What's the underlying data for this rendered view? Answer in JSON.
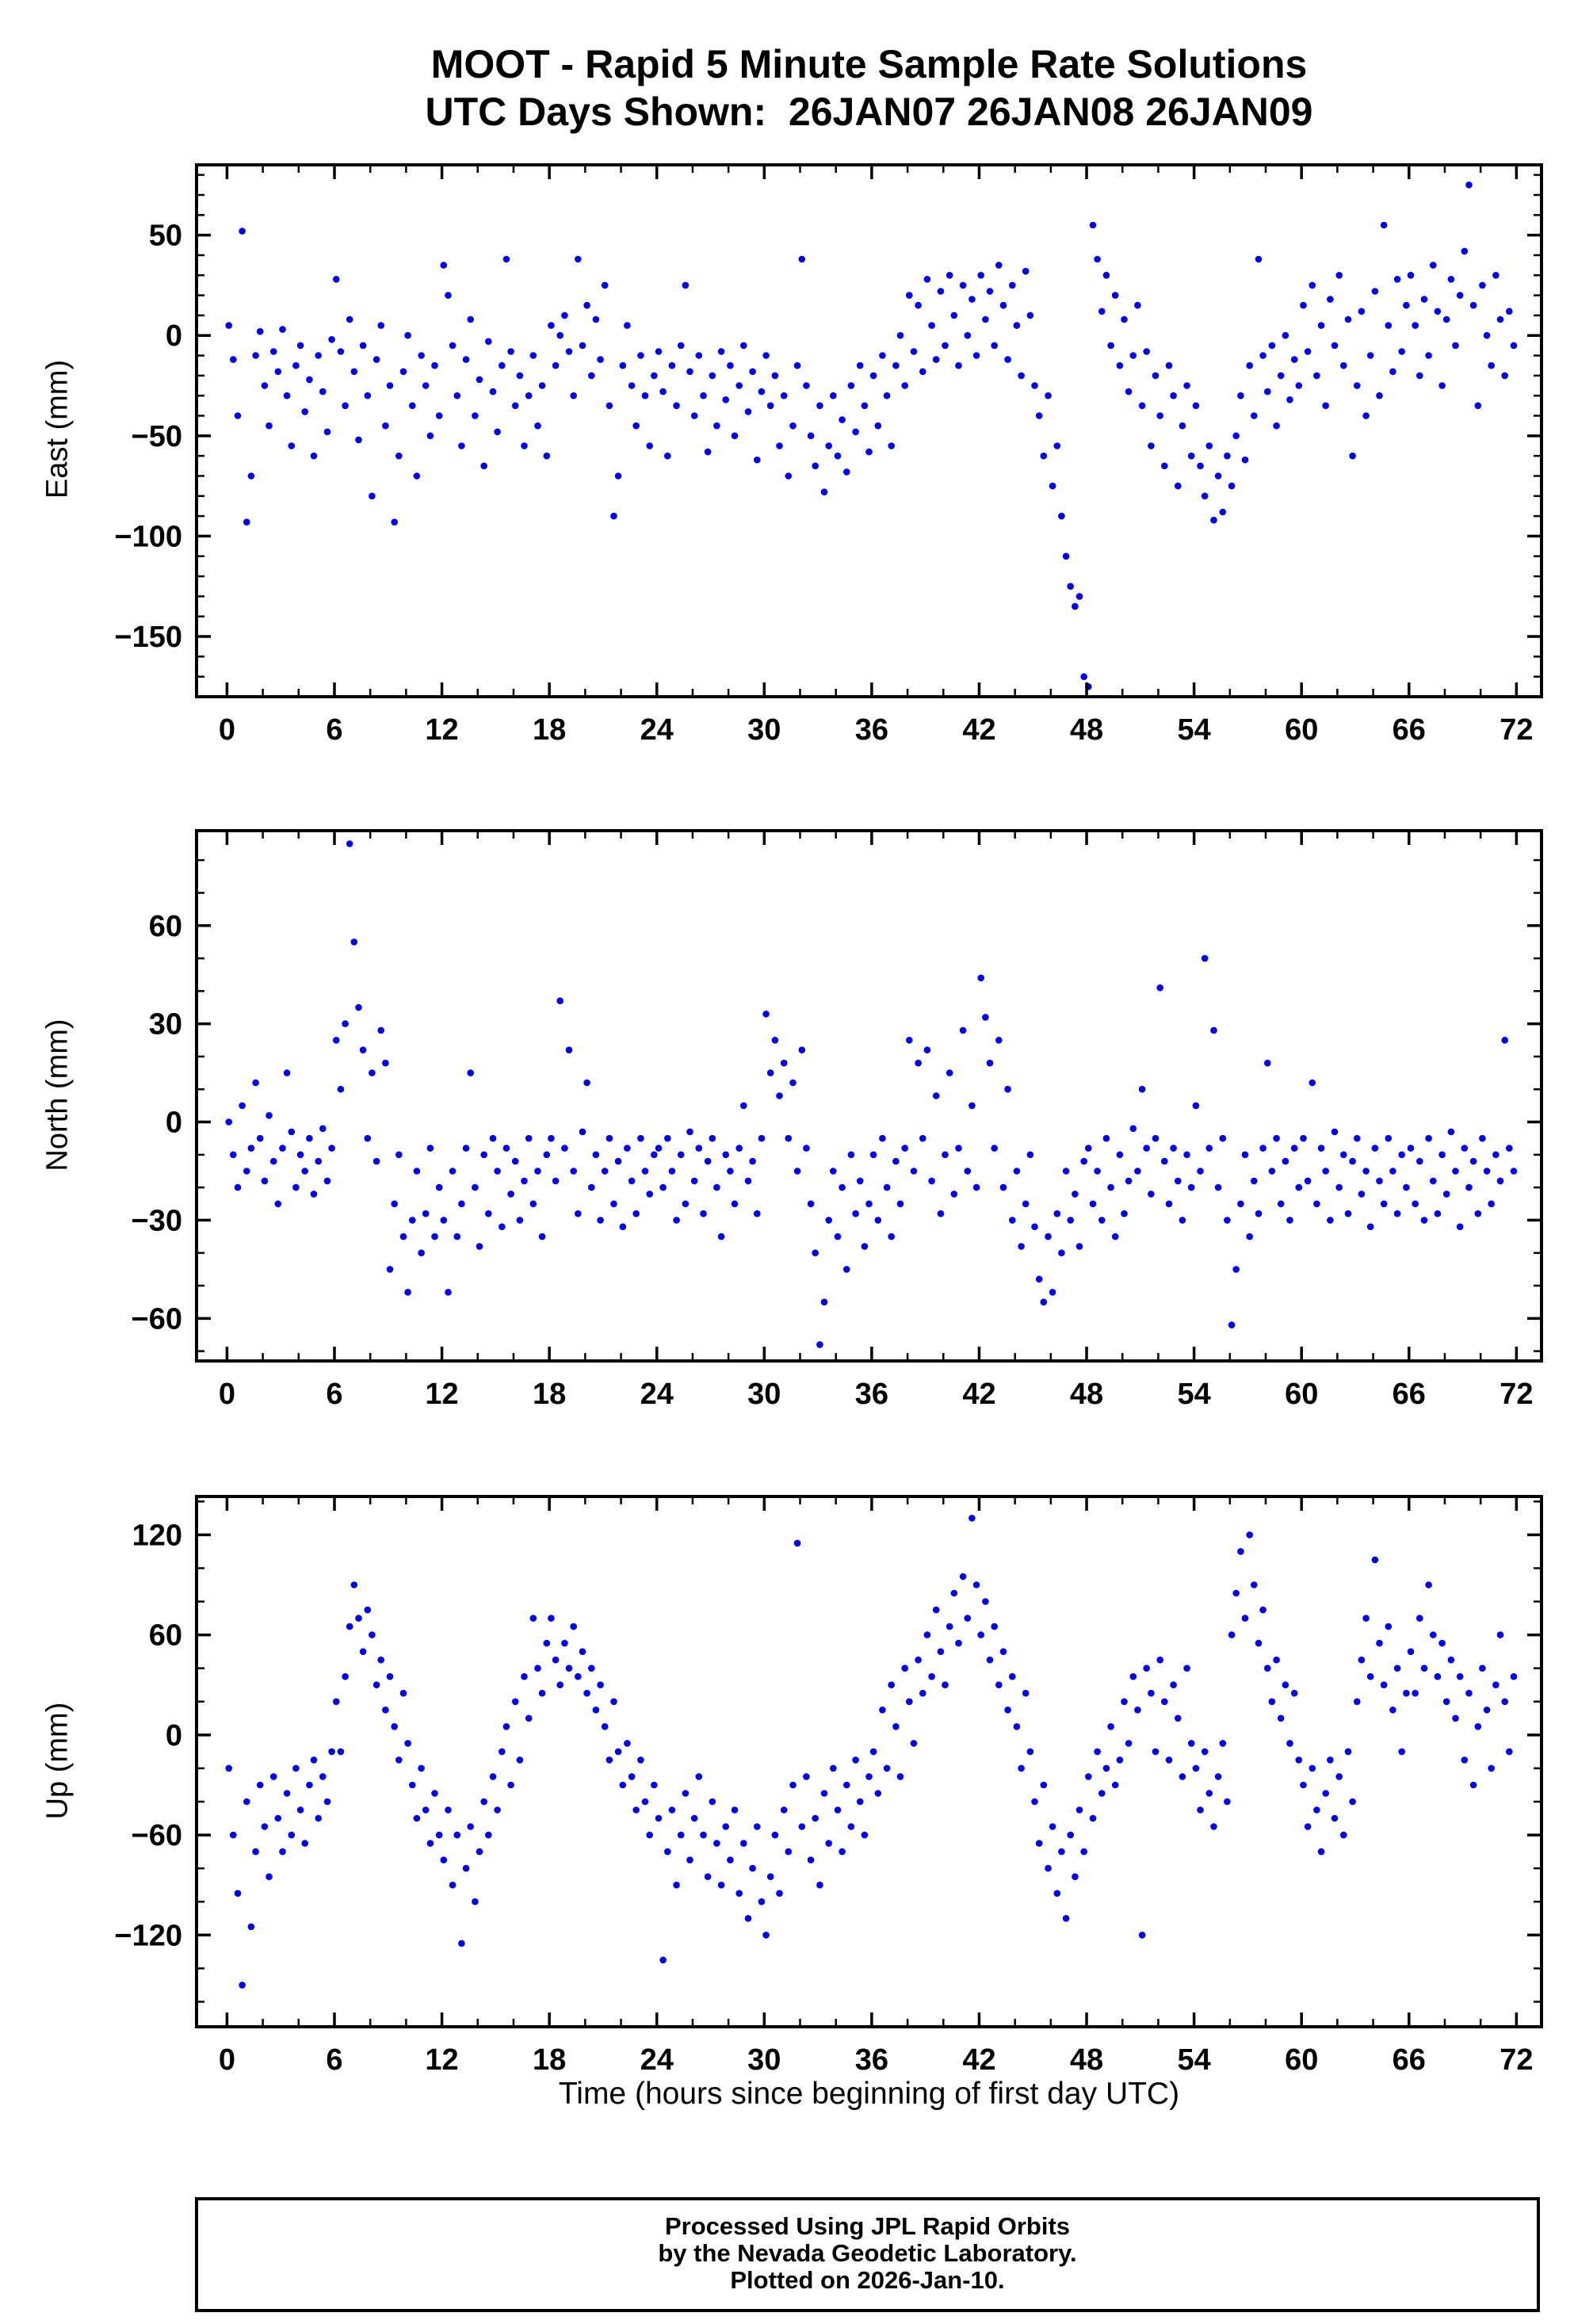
{
  "title": {
    "line1": "MOOT - Rapid 5 Minute Sample Rate Solutions",
    "line2": "UTC Days Shown:  26JAN07 26JAN08 26JAN09"
  },
  "xlabel": "Time (hours since beginning of first day UTC)",
  "footer": {
    "line1": "Processed Using JPL Rapid Orbits",
    "line2": "by the Nevada Geodetic Laboratory.",
    "line3": "Plotted on 2026-Jan-10."
  },
  "colors": {
    "point": "#0000e0",
    "frame": "#000000",
    "background": "#ffffff"
  },
  "chart_data": [
    {
      "type": "scatter",
      "name": "east",
      "ylabel": "East (mm)",
      "ylim": [
        -180,
        85
      ],
      "yticks": [
        50,
        0,
        -50,
        -100,
        -150
      ],
      "yminor": 10,
      "xlim": [
        -1.7,
        73.4
      ],
      "xticks": [
        0,
        6,
        12,
        18,
        24,
        30,
        36,
        42,
        48,
        54,
        60,
        66,
        72
      ],
      "xminor": 2,
      "x_start": 0.1,
      "dt_hours": 0.25,
      "values": [
        5,
        -12,
        -40,
        52,
        -93,
        -70,
        -10,
        2,
        -25,
        -45,
        -8,
        -18,
        3,
        -30,
        -55,
        -15,
        -5,
        -38,
        -22,
        -60,
        -10,
        -28,
        -48,
        -2,
        28,
        -8,
        -35,
        8,
        -18,
        -52,
        -5,
        -30,
        -80,
        -12,
        5,
        -45,
        -25,
        -93,
        -60,
        -18,
        0,
        -35,
        -70,
        -10,
        -25,
        -50,
        -15,
        -40,
        35,
        20,
        -5,
        -30,
        -55,
        -12,
        8,
        -40,
        -22,
        -65,
        -3,
        -28,
        -48,
        -15,
        38,
        -8,
        -35,
        -20,
        -55,
        -30,
        -10,
        -45,
        -25,
        -60,
        5,
        -15,
        0,
        10,
        -8,
        -30,
        38,
        -5,
        15,
        -20,
        8,
        -12,
        25,
        -35,
        -90,
        -70,
        -15,
        5,
        -25,
        -45,
        -10,
        -30,
        -55,
        -20,
        -8,
        -28,
        -60,
        -15,
        -35,
        -5,
        25,
        -18,
        -40,
        -10,
        -30,
        -58,
        -20,
        -45,
        -8,
        -32,
        -15,
        -50,
        -25,
        -5,
        -38,
        -18,
        -62,
        -28,
        -10,
        -35,
        -20,
        -55,
        -30,
        -70,
        -45,
        -15,
        38,
        -25,
        -50,
        -65,
        -35,
        -78,
        -55,
        -30,
        -60,
        -42,
        -68,
        -25,
        -48,
        -15,
        -35,
        -58,
        -20,
        -45,
        -10,
        -30,
        -55,
        -15,
        0,
        -25,
        20,
        -8,
        15,
        -18,
        28,
        5,
        -12,
        22,
        -5,
        30,
        10,
        -15,
        25,
        0,
        18,
        -10,
        30,
        8,
        22,
        -5,
        35,
        15,
        -12,
        25,
        5,
        -20,
        32,
        10,
        -25,
        -40,
        -60,
        -30,
        -75,
        -55,
        -90,
        -110,
        -125,
        -135,
        -130,
        -170,
        -175,
        55,
        38,
        12,
        30,
        -5,
        20,
        -15,
        8,
        -28,
        -10,
        15,
        -35,
        -8,
        -55,
        -20,
        -40,
        -65,
        -15,
        -30,
        -75,
        -45,
        -25,
        -60,
        -35,
        -65,
        -80,
        -55,
        -92,
        -70,
        -88,
        -60,
        -75,
        -50,
        -30,
        -62,
        -15,
        -40,
        38,
        -10,
        -28,
        -5,
        -45,
        -20,
        0,
        -32,
        -12,
        -25,
        15,
        -8,
        25,
        -20,
        5,
        -35,
        18,
        -5,
        30,
        -15,
        8,
        -60,
        -25,
        12,
        -40,
        -10,
        22,
        -30,
        55,
        5,
        -18,
        28,
        -8,
        15,
        30,
        5,
        -20,
        18,
        -10,
        35,
        12,
        -25,
        8,
        28,
        -5,
        20,
        42,
        75,
        15,
        -35,
        25,
        0,
        -15,
        30,
        8,
        -20,
        12,
        -5
      ]
    },
    {
      "type": "scatter",
      "name": "north",
      "ylabel": "North (mm)",
      "ylim": [
        -73,
        89
      ],
      "yticks": [
        60,
        30,
        0,
        -30,
        -60
      ],
      "yminor": 10,
      "xlim": [
        -1.7,
        73.4
      ],
      "xticks": [
        0,
        6,
        12,
        18,
        24,
        30,
        36,
        42,
        48,
        54,
        60,
        66,
        72
      ],
      "xminor": 2,
      "x_start": 0.1,
      "dt_hours": 0.25,
      "values": [
        0,
        -10,
        -20,
        5,
        -15,
        -8,
        12,
        -5,
        -18,
        2,
        -12,
        -25,
        -8,
        15,
        -3,
        -20,
        -10,
        -15,
        -5,
        -22,
        -12,
        -2,
        -18,
        -8,
        25,
        10,
        30,
        85,
        55,
        35,
        22,
        -5,
        15,
        -12,
        28,
        18,
        -45,
        -25,
        -10,
        -35,
        -52,
        -30,
        -15,
        -40,
        -28,
        -8,
        -35,
        -20,
        -30,
        -52,
        -15,
        -35,
        -25,
        -8,
        15,
        -20,
        -38,
        -10,
        -28,
        -5,
        -15,
        -32,
        -8,
        -22,
        -12,
        -30,
        -18,
        -5,
        -25,
        -15,
        -35,
        -10,
        -5,
        -18,
        37,
        -8,
        22,
        -15,
        -28,
        -3,
        12,
        -20,
        -10,
        -30,
        -15,
        -5,
        -25,
        -12,
        -32,
        -8,
        -18,
        -28,
        -5,
        -15,
        -22,
        -10,
        -8,
        -20,
        -5,
        -15,
        -30,
        -10,
        -25,
        -3,
        -18,
        -8,
        -28,
        -12,
        -5,
        -20,
        -35,
        -10,
        -15,
        -25,
        -8,
        5,
        -18,
        -12,
        -28,
        -5,
        33,
        15,
        25,
        8,
        18,
        -5,
        12,
        -15,
        22,
        -8,
        -25,
        -40,
        -68,
        -55,
        -30,
        -15,
        -35,
        -20,
        -45,
        -10,
        -28,
        -18,
        -38,
        -25,
        -10,
        -30,
        -5,
        -20,
        -35,
        -12,
        -25,
        -8,
        25,
        -15,
        18,
        -5,
        22,
        -18,
        8,
        -28,
        -10,
        15,
        -22,
        -8,
        28,
        -15,
        5,
        -20,
        44,
        32,
        18,
        -8,
        25,
        -20,
        10,
        -30,
        -15,
        -38,
        -25,
        -10,
        -32,
        -48,
        -55,
        -35,
        -52,
        -28,
        -40,
        -15,
        -30,
        -22,
        -38,
        -12,
        -8,
        -25,
        -15,
        -30,
        -5,
        -20,
        -35,
        -10,
        -28,
        -18,
        -2,
        -15,
        10,
        -8,
        -22,
        -5,
        41,
        -12,
        -25,
        -8,
        -18,
        -30,
        -10,
        -20,
        5,
        -15,
        50,
        -8,
        28,
        -20,
        -5,
        -30,
        -62,
        -45,
        -25,
        -10,
        -35,
        -18,
        -28,
        -8,
        18,
        -15,
        -5,
        -25,
        -12,
        -30,
        -8,
        -20,
        -5,
        -18,
        12,
        -25,
        -8,
        -15,
        -30,
        -3,
        -20,
        -10,
        -28,
        -12,
        -5,
        -22,
        -15,
        -32,
        -8,
        -18,
        -25,
        -5,
        -15,
        -28,
        -10,
        -20,
        -8,
        -25,
        -12,
        -30,
        -5,
        -18,
        -28,
        -10,
        -22,
        -3,
        -15,
        -32,
        -8,
        -20,
        -12,
        -28,
        -5,
        -15,
        -25,
        -10,
        -18,
        25,
        -8,
        -15
      ]
    },
    {
      "type": "scatter",
      "name": "up",
      "ylabel": "Up (mm)",
      "ylim": [
        -175,
        143
      ],
      "yticks": [
        120,
        60,
        0,
        -60,
        -120
      ],
      "yminor": 20,
      "xlim": [
        -1.7,
        73.4
      ],
      "xticks": [
        0,
        6,
        12,
        18,
        24,
        30,
        36,
        42,
        48,
        54,
        60,
        66,
        72
      ],
      "xminor": 2,
      "x_start": 0.1,
      "dt_hours": 0.25,
      "values": [
        -20,
        -60,
        -95,
        -150,
        -40,
        -115,
        -70,
        -30,
        -55,
        -85,
        -25,
        -50,
        -70,
        -35,
        -60,
        -20,
        -45,
        -65,
        -30,
        -15,
        -50,
        -25,
        -40,
        -10,
        20,
        -10,
        35,
        65,
        90,
        70,
        50,
        75,
        60,
        30,
        45,
        15,
        35,
        5,
        -15,
        25,
        -5,
        -30,
        -50,
        -20,
        -45,
        -65,
        -35,
        -60,
        -75,
        -45,
        -90,
        -60,
        -125,
        -80,
        -55,
        -100,
        -70,
        -40,
        -60,
        -25,
        -45,
        -10,
        5,
        -30,
        20,
        -15,
        35,
        10,
        70,
        40,
        25,
        55,
        70,
        45,
        30,
        55,
        40,
        65,
        35,
        50,
        25,
        40,
        15,
        30,
        5,
        -15,
        20,
        -10,
        -30,
        -5,
        -25,
        -45,
        -15,
        -40,
        -60,
        -30,
        -50,
        -135,
        -70,
        -45,
        -90,
        -60,
        -35,
        -75,
        -50,
        -25,
        -60,
        -85,
        -40,
        -65,
        -90,
        -55,
        -75,
        -45,
        -95,
        -65,
        -110,
        -80,
        -55,
        -100,
        -120,
        -85,
        -60,
        -95,
        -45,
        -70,
        -30,
        115,
        -55,
        -25,
        -75,
        -50,
        -90,
        -35,
        -65,
        -20,
        -45,
        -70,
        -30,
        -55,
        -15,
        -40,
        -60,
        -25,
        -10,
        -35,
        15,
        -20,
        30,
        5,
        -25,
        40,
        20,
        -5,
        45,
        25,
        60,
        35,
        75,
        50,
        30,
        65,
        85,
        55,
        95,
        70,
        130,
        90,
        60,
        80,
        45,
        65,
        30,
        50,
        15,
        35,
        5,
        -20,
        25,
        -10,
        -40,
        -65,
        -30,
        -80,
        -55,
        -95,
        -70,
        -110,
        -60,
        -85,
        -45,
        -70,
        -25,
        -50,
        -10,
        -35,
        -20,
        5,
        -30,
        -15,
        20,
        -5,
        35,
        15,
        -120,
        40,
        25,
        -10,
        45,
        20,
        -15,
        30,
        10,
        -25,
        40,
        -5,
        -20,
        -45,
        -10,
        -35,
        -55,
        -25,
        -5,
        -40,
        60,
        85,
        110,
        70,
        120,
        90,
        55,
        75,
        40,
        20,
        45,
        10,
        30,
        -5,
        25,
        -15,
        -30,
        -55,
        -20,
        -45,
        -70,
        -35,
        -15,
        -50,
        -25,
        -60,
        -10,
        -40,
        20,
        45,
        70,
        35,
        105,
        55,
        30,
        65,
        15,
        40,
        -10,
        25,
        50,
        25,
        70,
        40,
        90,
        60,
        35,
        55,
        20,
        45,
        10,
        35,
        -15,
        25,
        -30,
        5,
        40,
        15,
        -20,
        30,
        60,
        20,
        -10,
        35
      ]
    }
  ]
}
